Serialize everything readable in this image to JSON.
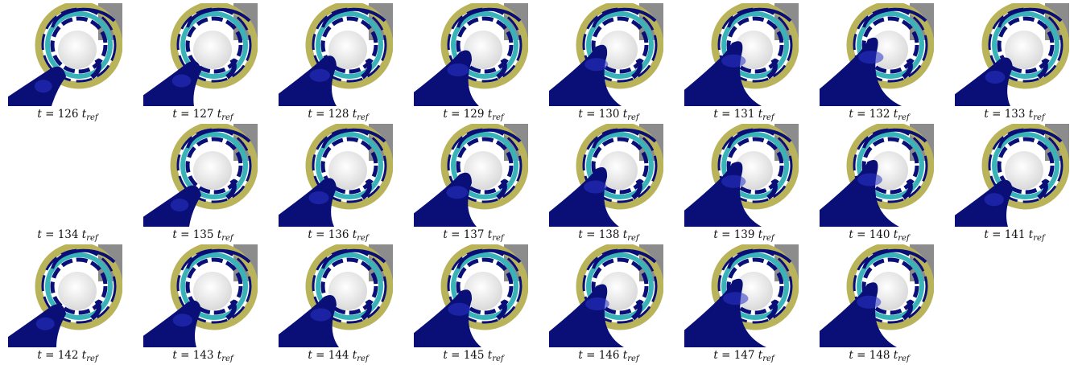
{
  "figure": {
    "rows": [
      [
        {
          "t": "126",
          "shown": true,
          "blob": 0.15
        },
        {
          "t": "127",
          "shown": true,
          "blob": 0.3
        },
        {
          "t": "128",
          "shown": true,
          "blob": 0.45
        },
        {
          "t": "129",
          "shown": true,
          "blob": 0.6
        },
        {
          "t": "130",
          "shown": true,
          "blob": 0.75
        },
        {
          "t": "131",
          "shown": true,
          "blob": 0.85
        },
        {
          "t": "132",
          "shown": true,
          "blob": 0.95
        },
        {
          "t": "133",
          "shown": true,
          "blob": 0.4
        }
      ],
      [
        {
          "t": "134",
          "shown": false,
          "blob": 0.0
        },
        {
          "t": "135",
          "shown": true,
          "blob": 0.2
        },
        {
          "t": "136",
          "shown": true,
          "blob": 0.4
        },
        {
          "t": "137",
          "shown": true,
          "blob": 0.55
        },
        {
          "t": "138",
          "shown": true,
          "blob": 0.7
        },
        {
          "t": "139",
          "shown": true,
          "blob": 0.85
        },
        {
          "t": "140",
          "shown": true,
          "blob": 0.9
        },
        {
          "t": "141",
          "shown": true,
          "blob": 0.35
        }
      ],
      [
        {
          "t": "142",
          "shown": true,
          "blob": 0.25
        },
        {
          "t": "143",
          "shown": true,
          "blob": 0.35
        },
        {
          "t": "144",
          "shown": true,
          "blob": 0.5
        },
        {
          "t": "145",
          "shown": true,
          "blob": 0.65
        },
        {
          "t": "146",
          "shown": true,
          "blob": 0.8
        },
        {
          "t": "147",
          "shown": true,
          "blob": 0.95
        },
        {
          "t": "148",
          "shown": true,
          "blob": 0.85
        }
      ]
    ],
    "caption_prefix": "t = ",
    "caption_unit": "t",
    "caption_unit_sub": "ref",
    "colors": {
      "fluid": "#0a0f78",
      "fluid_highlight": "#2a35c8",
      "ring_yellow": "#b9b45a",
      "ring_teal": "#38b4b8",
      "bore_gray": "#8c8c8c",
      "sphere": "#d9d9d9"
    }
  }
}
